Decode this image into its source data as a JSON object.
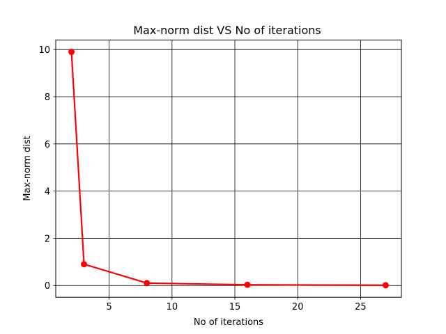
{
  "chart_data": {
    "type": "line",
    "title": "Max-norm dist VS No of iterations",
    "xlabel": "No of iterations",
    "ylabel": "Max-norm dist",
    "xlim": [
      0.75,
      28.25
    ],
    "ylim": [
      -0.5,
      10.4
    ],
    "grid": true,
    "xticks": [
      5,
      10,
      15,
      20,
      25
    ],
    "yticks": [
      0,
      2,
      4,
      6,
      8,
      10
    ],
    "series": [
      {
        "color": "#ff0000",
        "marker": "circle",
        "points": [
          {
            "x": 2,
            "y": 9.9
          },
          {
            "x": 3,
            "y": 0.9
          },
          {
            "x": 8,
            "y": 0.1
          },
          {
            "x": 16,
            "y": 0.03
          },
          {
            "x": 27,
            "y": 0.01
          }
        ]
      }
    ]
  }
}
